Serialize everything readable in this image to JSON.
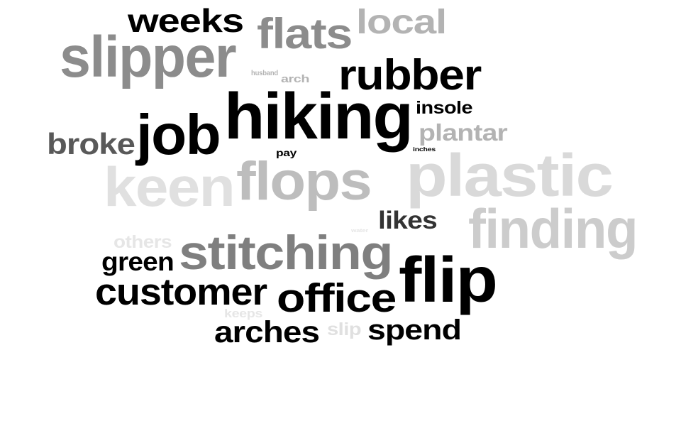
{
  "words": [
    {
      "text": "weeks",
      "color": "#000000"
    },
    {
      "text": "local",
      "color": "#b3b3b3"
    },
    {
      "text": "flats",
      "color": "#8c8c8c"
    },
    {
      "text": "slipper",
      "color": "#8c8c8c"
    },
    {
      "text": "rubber",
      "color": "#000000"
    },
    {
      "text": "husband",
      "color": "#b3b3b3"
    },
    {
      "text": "arch",
      "color": "#b3b3b3"
    },
    {
      "text": "hiking",
      "color": "#000000"
    },
    {
      "text": "insole",
      "color": "#000000"
    },
    {
      "text": "plantar",
      "color": "#b3b3b3"
    },
    {
      "text": "job",
      "color": "#000000"
    },
    {
      "text": "broke",
      "color": "#595959"
    },
    {
      "text": "pay",
      "color": "#000000"
    },
    {
      "text": "inches",
      "color": "#000000"
    },
    {
      "text": "keen",
      "color": "#e0e0e0"
    },
    {
      "text": "flops",
      "color": "#bdbdbd"
    },
    {
      "text": "plastic",
      "color": "#d9d9d9"
    },
    {
      "text": "finding",
      "color": "#cccccc"
    },
    {
      "text": "likes",
      "color": "#333333"
    },
    {
      "text": "others",
      "color": "#e6e6e6"
    },
    {
      "text": "water",
      "color": "#e6e6e6"
    },
    {
      "text": "stitching",
      "color": "#7f7f7f"
    },
    {
      "text": "green",
      "color": "#000000"
    },
    {
      "text": "flip",
      "color": "#000000"
    },
    {
      "text": "customer",
      "color": "#000000"
    },
    {
      "text": "office",
      "color": "#000000"
    },
    {
      "text": "keeps",
      "color": "#e6e6e6"
    },
    {
      "text": "arches",
      "color": "#000000"
    },
    {
      "text": "slip",
      "color": "#e0e0e0"
    },
    {
      "text": "spend",
      "color": "#000000"
    }
  ]
}
